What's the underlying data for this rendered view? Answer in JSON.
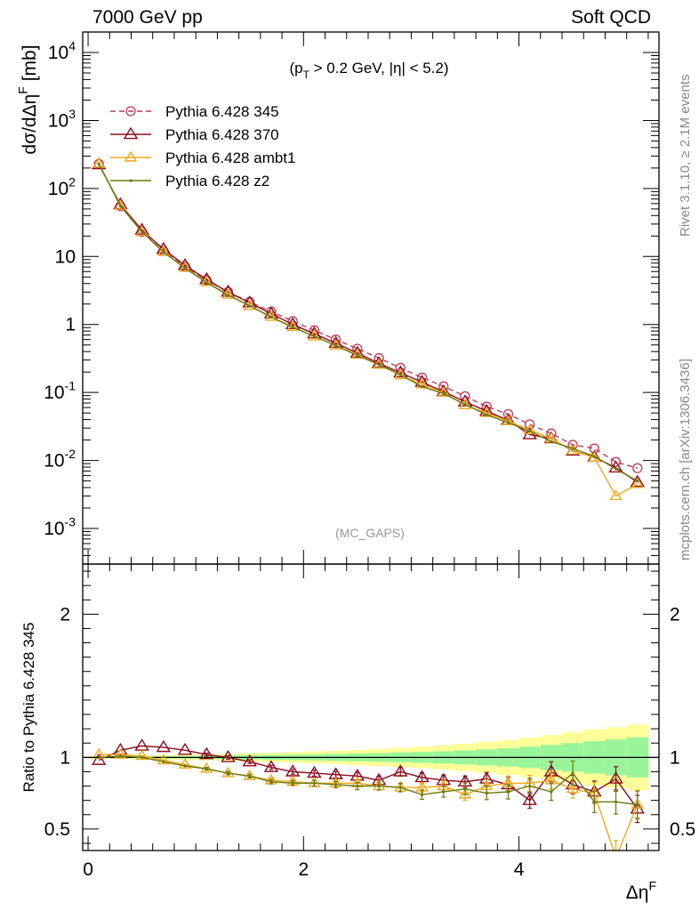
{
  "header": {
    "left": "7000 GeV pp",
    "right": "Soft QCD"
  },
  "side_text": {
    "top": "Rivet 3.1.10, ≥ 2.1M events",
    "bottom": "mcplots.cern.ch [arXiv:1306.3436]"
  },
  "chart_data": [
    {
      "type": "line",
      "ylabel": "dσ/dΔη^F [mb]",
      "annotation": "(p_T > 0.2 GeV, |η| < 5.2)",
      "watermark": "(MC_GAPS)",
      "y_scale": "log",
      "ylim": [
        0.0003,
        20000
      ],
      "xlim": [
        -0.05,
        5.3
      ],
      "y_ticks": [
        "10^-3",
        "10^-2",
        "10^-1",
        "1",
        "10",
        "10^2",
        "10^3",
        "10^4"
      ],
      "legend_position": "top-left",
      "x": [
        0.1,
        0.3,
        0.5,
        0.7,
        0.9,
        1.1,
        1.3,
        1.5,
        1.7,
        1.9,
        2.1,
        2.3,
        2.5,
        2.7,
        2.9,
        3.1,
        3.3,
        3.5,
        3.7,
        3.9,
        4.1,
        4.3,
        4.5,
        4.7,
        4.9,
        5.1
      ],
      "series": [
        {
          "name": "Pythia 6.428 345",
          "color": "#c0395a",
          "style": "dashed",
          "marker": "circle",
          "values": [
            230,
            55,
            23,
            12,
            7.1,
            4.5,
            3.0,
            2.15,
            1.55,
            1.12,
            0.82,
            0.6,
            0.44,
            0.32,
            0.23,
            0.165,
            0.123,
            0.088,
            0.062,
            0.048,
            0.034,
            0.025,
            0.017,
            0.015,
            0.0095,
            0.0077
          ]
        },
        {
          "name": "Pythia 6.428 370",
          "color": "#8b0a1e",
          "style": "solid",
          "marker": "triangle",
          "values": [
            225,
            58,
            24.5,
            12.8,
            7.4,
            4.6,
            3.0,
            2.08,
            1.44,
            1.0,
            0.73,
            0.53,
            0.38,
            0.268,
            0.195,
            0.142,
            0.103,
            0.073,
            0.053,
            0.039,
            0.024,
            0.021,
            0.0138,
            0.0112,
            0.0078,
            0.0048
          ]
        },
        {
          "name": "Pythia 6.428 ambt1",
          "color": "#f0a818",
          "style": "solid",
          "marker": "triangle",
          "values": [
            232,
            56,
            23,
            11.7,
            6.8,
            4.2,
            2.75,
            1.88,
            1.3,
            0.92,
            0.67,
            0.49,
            0.36,
            0.256,
            0.18,
            0.132,
            0.1,
            0.065,
            0.05,
            0.038,
            0.028,
            0.021,
            0.014,
            0.011,
            0.003,
            0.0045
          ]
        },
        {
          "name": "Pythia 6.428 z2",
          "color": "#6b7a10",
          "style": "solid",
          "marker": "dot",
          "values": [
            230,
            55.5,
            23,
            11.6,
            6.7,
            4.15,
            2.7,
            1.88,
            1.28,
            0.91,
            0.67,
            0.49,
            0.35,
            0.256,
            0.182,
            0.122,
            0.096,
            0.067,
            0.047,
            0.036,
            0.027,
            0.019,
            0.015,
            0.0115,
            0.0075,
            0.005
          ]
        }
      ]
    },
    {
      "type": "line",
      "ylabel": "Ratio to Pythia 6.428 345",
      "xlabel": "Δη^F",
      "ylim": [
        0.35,
        2.35
      ],
      "xlim": [
        -0.05,
        5.3
      ],
      "x_ticks": [
        "0",
        "2",
        "4"
      ],
      "y_ticks": [
        "0.5",
        "1",
        "2"
      ],
      "reference_band": {
        "inner_halfwidth": [
          0.004,
          0.005,
          0.006,
          0.008,
          0.009,
          0.011,
          0.013,
          0.015,
          0.017,
          0.019,
          0.021,
          0.024,
          0.027,
          0.03,
          0.034,
          0.038,
          0.043,
          0.049,
          0.056,
          0.064,
          0.075,
          0.087,
          0.1,
          0.113,
          0.126,
          0.14
        ],
        "outer_halfwidth": [
          0.008,
          0.01,
          0.012,
          0.015,
          0.018,
          0.021,
          0.025,
          0.029,
          0.033,
          0.037,
          0.042,
          0.047,
          0.053,
          0.06,
          0.067,
          0.075,
          0.085,
          0.096,
          0.108,
          0.122,
          0.138,
          0.156,
          0.175,
          0.195,
          0.21,
          0.23
        ]
      },
      "series": [
        {
          "name": "Pythia 6.428 370",
          "values": [
            0.98,
            1.05,
            1.08,
            1.07,
            1.05,
            1.02,
            1.0,
            0.97,
            0.93,
            0.9,
            0.89,
            0.88,
            0.87,
            0.84,
            0.9,
            0.86,
            0.84,
            0.83,
            0.85,
            0.81,
            0.7,
            0.9,
            0.81,
            0.76,
            0.85,
            0.64
          ],
          "errors": [
            0.004,
            0.005,
            0.006,
            0.007,
            0.008,
            0.01,
            0.012,
            0.013,
            0.015,
            0.017,
            0.02,
            0.022,
            0.025,
            0.028,
            0.03,
            0.033,
            0.037,
            0.04,
            0.045,
            0.05,
            0.055,
            0.07,
            0.065,
            0.075,
            0.085,
            0.095
          ]
        },
        {
          "name": "Pythia 6.428 ambt1",
          "values": [
            1.02,
            1.02,
            1.01,
            0.98,
            0.95,
            0.92,
            0.89,
            0.87,
            0.84,
            0.83,
            0.82,
            0.82,
            0.82,
            0.8,
            0.79,
            0.79,
            0.8,
            0.74,
            0.8,
            0.82,
            0.82,
            0.84,
            0.78,
            0.75,
            0.3,
            0.67
          ],
          "errors": [
            0.004,
            0.005,
            0.006,
            0.007,
            0.008,
            0.01,
            0.012,
            0.013,
            0.015,
            0.017,
            0.02,
            0.022,
            0.025,
            0.028,
            0.03,
            0.033,
            0.037,
            0.04,
            0.045,
            0.05,
            0.055,
            0.06,
            0.065,
            0.075,
            0.12,
            0.1
          ]
        },
        {
          "name": "Pythia 6.428 z2",
          "values": [
            1.0,
            1.01,
            1.0,
            0.97,
            0.94,
            0.92,
            0.89,
            0.87,
            0.83,
            0.82,
            0.82,
            0.81,
            0.8,
            0.8,
            0.79,
            0.74,
            0.76,
            0.78,
            0.75,
            0.76,
            0.8,
            0.76,
            0.89,
            0.69,
            0.69,
            0.67
          ],
          "errors": [
            0.004,
            0.005,
            0.006,
            0.007,
            0.008,
            0.01,
            0.012,
            0.013,
            0.015,
            0.017,
            0.02,
            0.022,
            0.025,
            0.028,
            0.03,
            0.033,
            0.037,
            0.04,
            0.045,
            0.05,
            0.055,
            0.06,
            0.085,
            0.075,
            0.085,
            0.095
          ]
        }
      ]
    }
  ]
}
